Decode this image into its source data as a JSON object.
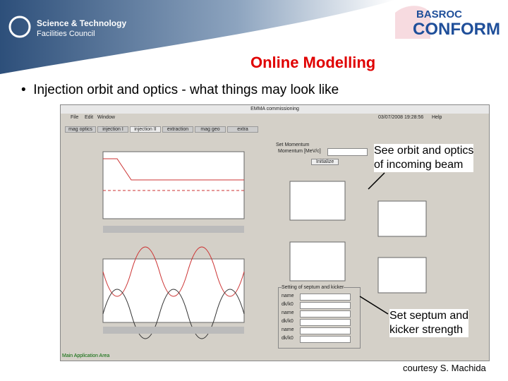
{
  "header": {
    "org_line1": "Science & Technology",
    "org_line2": "Facilities Council",
    "logo_top": "BASROC",
    "logo_bottom": "CONFORM"
  },
  "slide": {
    "title": "Online Modelling",
    "bullet": "Injection orbit and optics - what things may look like",
    "credit": "courtesy S. Machida"
  },
  "window": {
    "title": "EMMA commissioning",
    "menu": [
      "File",
      "Edit",
      "Window"
    ],
    "timestamp": "03/07/2008 19:28:56",
    "help": "Help",
    "tabs": [
      "mag optics",
      "injection I",
      "injection II",
      "extraction",
      "mag geo",
      "extra"
    ],
    "momentum_panel": {
      "title": "Set Momentum",
      "label": "Momentum [MeV/c]",
      "button": "Initialize"
    },
    "septum_panel": {
      "title": "Setting of septum and kicker",
      "rows": [
        "name",
        "dk/k0",
        "name",
        "dk/k0",
        "name",
        "dk/k0"
      ]
    },
    "status": "Main Application Area"
  },
  "annotations": {
    "orbit": [
      "See orbit and optics",
      "of incoming beam"
    ],
    "septum": [
      "Set septum and",
      "kicker strength"
    ]
  }
}
